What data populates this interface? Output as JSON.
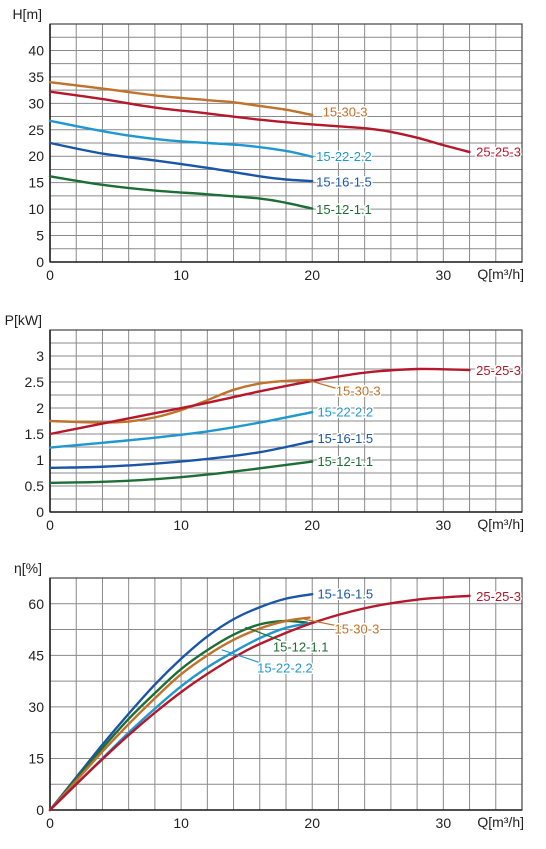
{
  "chart_data": [
    {
      "type": "line",
      "ylabel": "H[m]",
      "xlabel": "Q[m³/h]",
      "xlim": [
        0,
        36
      ],
      "ylim": [
        0,
        45
      ],
      "x_ticks": [
        0,
        10,
        20,
        30
      ],
      "y_ticks": [
        0,
        5,
        10,
        15,
        20,
        25,
        30,
        35,
        40
      ],
      "grid": true,
      "series": [
        {
          "name": "15-30-3",
          "color": "#c0712a",
          "x": [
            0,
            4,
            8,
            12,
            14,
            16,
            18,
            20
          ],
          "y": [
            34,
            32.8,
            31.5,
            30.6,
            30.2,
            29.5,
            28.8,
            27.8
          ]
        },
        {
          "name": "25-25-3",
          "color": "#b5172b",
          "x": [
            0,
            4,
            8,
            12,
            16,
            20,
            24,
            26,
            28,
            30,
            32
          ],
          "y": [
            32.2,
            30.8,
            29.2,
            28.1,
            26.9,
            26,
            25.3,
            24.6,
            23.5,
            22.1,
            20.8
          ]
        },
        {
          "name": "15-22-2.2",
          "color": "#1f97cf",
          "x": [
            0,
            3,
            6,
            9,
            12,
            15,
            18,
            20
          ],
          "y": [
            26.7,
            25.2,
            23.9,
            23,
            22.5,
            22,
            21,
            19.9
          ]
        },
        {
          "name": "15-16-1.5",
          "color": "#1a56a6",
          "x": [
            0,
            4,
            8,
            12,
            16,
            18,
            20
          ],
          "y": [
            22.5,
            20.5,
            19.2,
            17.8,
            16.2,
            15.6,
            15.3
          ]
        },
        {
          "name": "15-12-1.1",
          "color": "#1d6e36",
          "x": [
            0,
            4,
            8,
            12,
            16,
            18,
            20
          ],
          "y": [
            16.2,
            14.6,
            13.5,
            12.8,
            12,
            11.2,
            10.1
          ]
        }
      ],
      "labels": [
        {
          "text": "15-30-3",
          "x": 20.8,
          "y": 28.5,
          "anchor": "start",
          "color": "#c0712a"
        },
        {
          "text": "25-25-3",
          "x": 32.5,
          "y": 20.9,
          "anchor": "start",
          "color": "#b5172b"
        },
        {
          "text": "15-22-2.2",
          "x": 20.3,
          "y": 20.0,
          "anchor": "start",
          "color": "#1f97cf"
        },
        {
          "text": "15-16-1.5",
          "x": 20.3,
          "y": 15.2,
          "anchor": "start",
          "color": "#1a56a6"
        },
        {
          "text": "15-12-1.1",
          "x": 20.3,
          "y": 10.0,
          "anchor": "start",
          "color": "#1d6e36"
        }
      ],
      "leaders": []
    },
    {
      "type": "line",
      "ylabel": "P[kW]",
      "xlabel": "Q[m³/h]",
      "xlim": [
        0,
        36
      ],
      "ylim": [
        0,
        3.5
      ],
      "x_ticks": [
        0,
        10,
        20,
        30
      ],
      "y_ticks": [
        0,
        0.5,
        1,
        1.5,
        2,
        2.5,
        3
      ],
      "grid": true,
      "series": [
        {
          "name": "15-30-3",
          "color": "#c0712a",
          "x": [
            0,
            4,
            6,
            8,
            10,
            12,
            14,
            16,
            18,
            20
          ],
          "y": [
            1.75,
            1.72,
            1.74,
            1.82,
            1.96,
            2.15,
            2.35,
            2.47,
            2.52,
            2.54
          ]
        },
        {
          "name": "25-25-3",
          "color": "#b5172b",
          "x": [
            0,
            4,
            8,
            12,
            16,
            20,
            24,
            28,
            32
          ],
          "y": [
            1.5,
            1.7,
            1.9,
            2.1,
            2.32,
            2.52,
            2.68,
            2.75,
            2.73
          ]
        },
        {
          "name": "15-22-2.2",
          "color": "#1f97cf",
          "x": [
            0,
            4,
            8,
            12,
            16,
            20
          ],
          "y": [
            1.24,
            1.33,
            1.43,
            1.55,
            1.72,
            1.92
          ]
        },
        {
          "name": "15-16-1.5",
          "color": "#1a56a6",
          "x": [
            0,
            4,
            8,
            12,
            16,
            20
          ],
          "y": [
            0.85,
            0.87,
            0.93,
            1.02,
            1.15,
            1.36
          ]
        },
        {
          "name": "15-12-1.1",
          "color": "#1d6e36",
          "x": [
            0,
            4,
            8,
            12,
            16,
            20
          ],
          "y": [
            0.56,
            0.58,
            0.63,
            0.72,
            0.84,
            0.97
          ]
        }
      ],
      "labels": [
        {
          "text": "15-30-3",
          "x": 21.8,
          "y": 2.34,
          "anchor": "start",
          "color": "#c0712a"
        },
        {
          "text": "25-25-3",
          "x": 32.5,
          "y": 2.73,
          "anchor": "start",
          "color": "#b5172b"
        },
        {
          "text": "15-22-2.2",
          "x": 20.4,
          "y": 1.93,
          "anchor": "start",
          "color": "#1f97cf"
        },
        {
          "text": "15-16-1.5",
          "x": 20.4,
          "y": 1.42,
          "anchor": "start",
          "color": "#1a56a6"
        },
        {
          "text": "15-12-1.1",
          "x": 20.4,
          "y": 0.98,
          "anchor": "start",
          "color": "#1d6e36"
        }
      ],
      "leaders": [
        {
          "color": "#c0712a",
          "x1": 19.6,
          "y1": 2.54,
          "x2": 21.8,
          "y2": 2.38
        }
      ]
    },
    {
      "type": "line",
      "ylabel": "η[%]",
      "xlabel": "Q[m³/h]",
      "xlim": [
        0,
        36
      ],
      "ylim": [
        0,
        67.5
      ],
      "x_ticks": [
        0,
        10,
        20,
        30
      ],
      "y_ticks": [
        0,
        15,
        30,
        45,
        60
      ],
      "grid": true,
      "series": [
        {
          "name": "15-16-1.5",
          "color": "#1a56a6",
          "x": [
            0,
            2,
            4,
            6,
            8,
            10,
            12,
            14,
            16,
            18,
            20
          ],
          "y": [
            0,
            9.5,
            19,
            28,
            36.5,
            44,
            50.5,
            55.5,
            59,
            61.5,
            62.8
          ]
        },
        {
          "name": "15-12-1.1",
          "color": "#1d6e36",
          "x": [
            0,
            2,
            4,
            6,
            8,
            10,
            12,
            14,
            16,
            18,
            19.6
          ],
          "y": [
            0,
            9,
            18,
            26.5,
            34,
            41,
            46.5,
            51,
            54,
            55,
            54.5
          ]
        },
        {
          "name": "15-30-3",
          "color": "#c0712a",
          "x": [
            0,
            2,
            4,
            6,
            8,
            10,
            12,
            14,
            16,
            18,
            19.8
          ],
          "y": [
            0,
            8.5,
            17,
            25,
            32.5,
            39.5,
            45,
            49.5,
            52.8,
            55,
            56
          ]
        },
        {
          "name": "15-22-2.2",
          "color": "#1f97cf",
          "x": [
            0,
            2,
            4,
            6,
            8,
            10,
            12,
            14,
            16,
            18,
            20
          ],
          "y": [
            0,
            7.5,
            15,
            22.5,
            29.5,
            36,
            41.5,
            46,
            50,
            53,
            54.5
          ]
        },
        {
          "name": "25-25-3",
          "color": "#b5172b",
          "x": [
            0,
            2,
            4,
            6,
            8,
            10,
            12,
            14,
            16,
            20,
            24,
            28,
            32
          ],
          "y": [
            0,
            7.5,
            14.8,
            21.8,
            28.3,
            34.3,
            39.6,
            44.3,
            48.3,
            54.4,
            58.7,
            61.2,
            62.3
          ]
        }
      ],
      "labels": [
        {
          "text": "15-16-1.5",
          "x": 20.4,
          "y": 63.0,
          "anchor": "start",
          "color": "#1a56a6"
        },
        {
          "text": "25-25-3",
          "x": 32.5,
          "y": 62.3,
          "anchor": "start",
          "color": "#b5172b"
        },
        {
          "text": "15-30-3",
          "x": 21.7,
          "y": 52.8,
          "anchor": "start",
          "color": "#c0712a"
        },
        {
          "text": "15-12-1.1",
          "x": 17.0,
          "y": 47.5,
          "anchor": "start",
          "color": "#1d6e36"
        },
        {
          "text": "15-22-2.2",
          "x": 15.8,
          "y": 41.4,
          "anchor": "start",
          "color": "#1f97cf"
        }
      ],
      "leaders": [
        {
          "color": "#c0712a",
          "x1": 19.4,
          "y1": 55.5,
          "x2": 22.3,
          "y2": 53.3
        },
        {
          "color": "#1d6e36",
          "x1": 14.9,
          "y1": 53.2,
          "x2": 17.6,
          "y2": 49.3
        },
        {
          "color": "#1f97cf",
          "x1": 13.1,
          "y1": 46.6,
          "x2": 15.9,
          "y2": 43.0
        }
      ]
    }
  ]
}
